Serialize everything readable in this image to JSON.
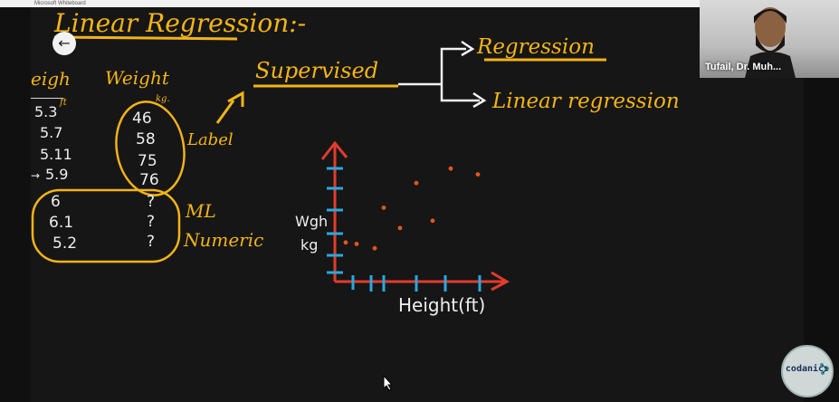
{
  "window": {
    "title": "Microsoft Whiteboard"
  },
  "video": {
    "participant_name": "Tufail, Dr. Muh..."
  },
  "brand": {
    "label": "codanics"
  },
  "whiteboard": {
    "title": "Linear Regression:-",
    "supervised": "Supervised",
    "branch_top": "Regression",
    "branch_bottom": "Linear regression",
    "label_word": "Label",
    "ml_word": "ML",
    "numeric_word": "Numeric",
    "table": {
      "height_header": "eigh",
      "weight_header": "Weight",
      "height_unit": "ft",
      "weight_unit": "kg.",
      "known_heights": [
        "5.3",
        "5.7",
        "5.11",
        "5.9"
      ],
      "known_weights": [
        "46",
        "58",
        "75",
        "76"
      ],
      "unknown_heights": [
        "6",
        "6.1",
        "5.2"
      ],
      "unknown_weights": [
        "?",
        "?",
        "?"
      ]
    },
    "plot": {
      "x_label": "Height(ft)",
      "y_label_line1": "Wgh",
      "y_label_line2": "kg"
    }
  },
  "chart_data": {
    "type": "scatter",
    "xlabel": "Height(ft)",
    "ylabel": "Wgh kg",
    "points": [
      {
        "x": 1.2,
        "y": 2.6
      },
      {
        "x": 2.2,
        "y": 2.3
      },
      {
        "x": 2.7,
        "y": 5.1
      },
      {
        "x": 3.6,
        "y": 3.7
      },
      {
        "x": 4.5,
        "y": 6.8
      },
      {
        "x": 5.4,
        "y": 4.2
      },
      {
        "x": 6.4,
        "y": 7.8
      },
      {
        "x": 7.9,
        "y": 7.4
      },
      {
        "x": 0.6,
        "y": 2.7
      }
    ],
    "colors": {
      "points": "#e8541d",
      "axes": "#e23c2c",
      "ticks": "#2aa8e0"
    }
  }
}
